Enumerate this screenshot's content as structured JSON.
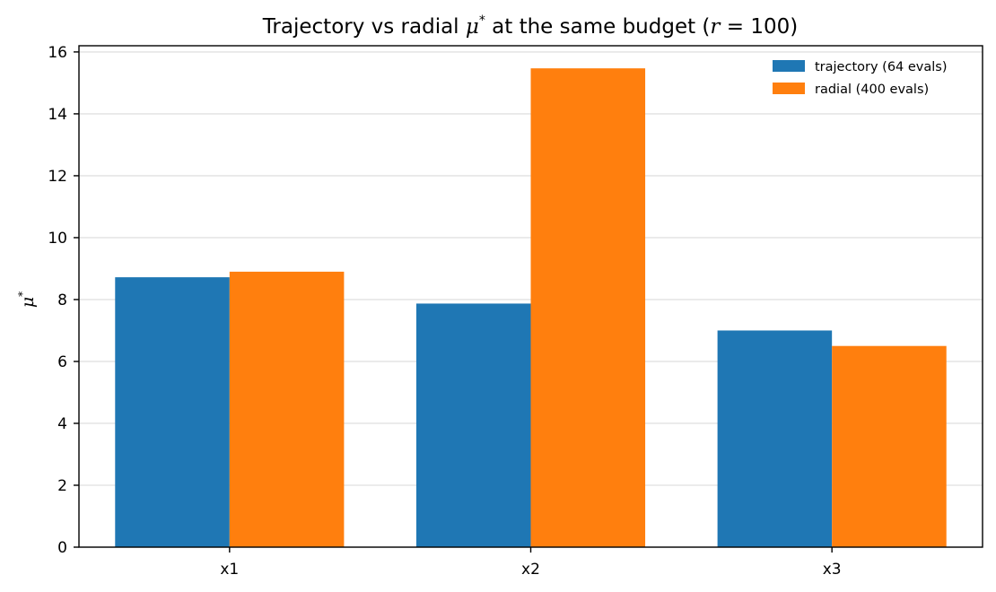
{
  "chart_data": {
    "type": "bar",
    "title": {
      "prefix": "Trajectory vs radial ",
      "mu": "μ",
      "star": "*",
      "middle": " at the same budget (",
      "r": "r",
      "equals": " = ",
      "value": "100",
      "close": ")"
    },
    "ylabel": {
      "mu": "μ",
      "star": "*"
    },
    "xlabel": "",
    "categories": [
      "x1",
      "x2",
      "x3"
    ],
    "series": [
      {
        "name": "trajectory (64 evals)",
        "color": "#1f77b4",
        "values": [
          8.72,
          7.87,
          7.0
        ]
      },
      {
        "name": "radial (400 evals)",
        "color": "#ff7f0e",
        "values": [
          8.9,
          15.47,
          6.5
        ]
      }
    ],
    "ylim": [
      0,
      16.2
    ],
    "yticks": [
      0,
      2,
      4,
      6,
      8,
      10,
      12,
      14,
      16
    ],
    "grid": "horizontal",
    "legend_position": "top-right"
  }
}
